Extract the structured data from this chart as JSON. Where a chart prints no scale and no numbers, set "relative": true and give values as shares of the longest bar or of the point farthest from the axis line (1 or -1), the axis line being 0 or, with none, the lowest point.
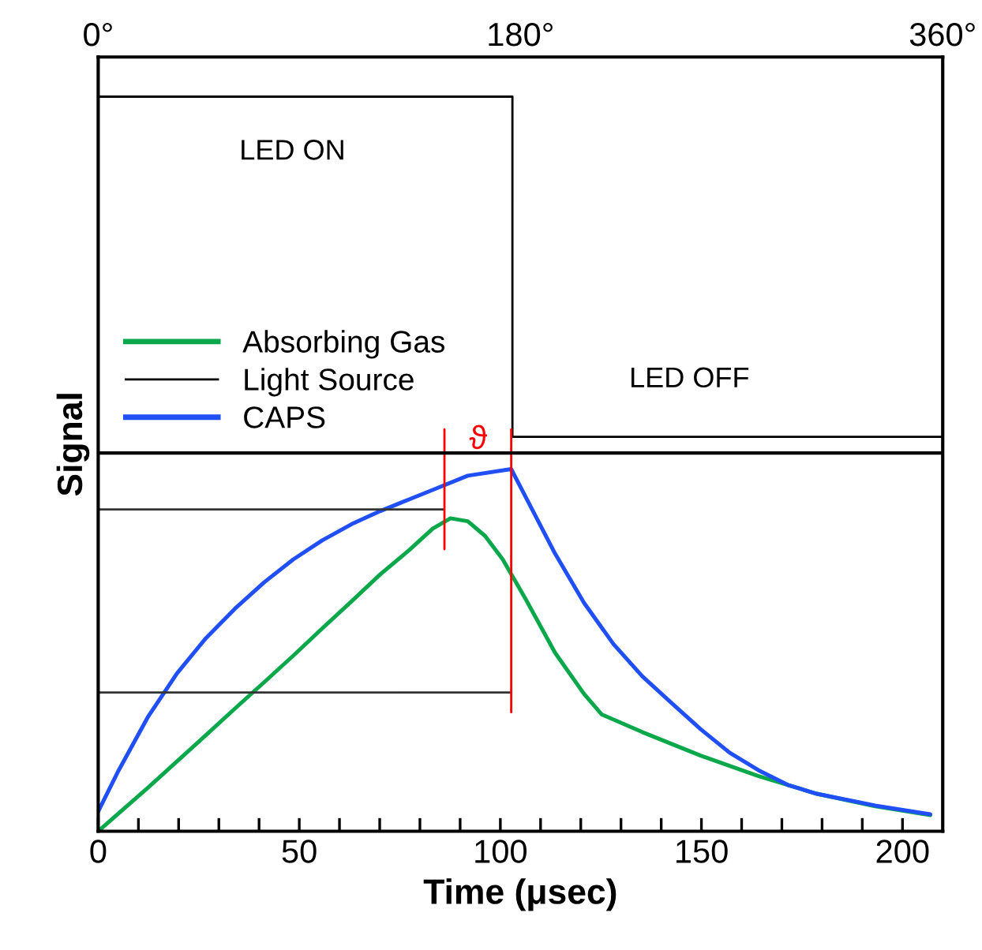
{
  "chart_data": {
    "type": "line",
    "relative": true,
    "xlabel": "Time (μsec)",
    "ylabel": "Signal",
    "xlim": [
      0,
      210
    ],
    "xticks": [
      0,
      {
        "value": 10,
        "label": null
      },
      {
        "value": 20,
        "label": null
      },
      {
        "value": 30,
        "label": null
      },
      {
        "value": 40,
        "label": null
      },
      50,
      {
        "value": 60,
        "label": null
      },
      {
        "value": 70,
        "label": null
      },
      {
        "value": 80,
        "label": null
      },
      {
        "value": 90,
        "label": null
      },
      100,
      {
        "value": 110,
        "label": null
      },
      {
        "value": 120,
        "label": null
      },
      {
        "value": 130,
        "label": null
      },
      {
        "value": 140,
        "label": null
      },
      150,
      {
        "value": 160,
        "label": null
      },
      {
        "value": 170,
        "label": null
      },
      {
        "value": 180,
        "label": null
      },
      {
        "value": 190,
        "label": null
      },
      200
    ],
    "x2lim": [
      0,
      360
    ],
    "x2ticks": [
      {
        "value": 0,
        "label": "0°"
      },
      {
        "value": 180,
        "label": "180°"
      },
      {
        "value": 360,
        "label": "360°"
      }
    ],
    "legend": "left",
    "series": [
      {
        "name": "Absorbing Gas",
        "color": "#0aa84a",
        "x": [
          0,
          12.3,
          26.8,
          34.0,
          41.3,
          48.5,
          55.7,
          63.0,
          70.2,
          77.4,
          83.2,
          87.6,
          91.9,
          96.2,
          100.6,
          106.4,
          113.6,
          120.8,
          125.2,
          135.3,
          149.8,
          164.2,
          178.7,
          193.2,
          206.9
        ],
        "values": [
          0.0,
          0.059,
          0.131,
          0.167,
          0.203,
          0.239,
          0.276,
          0.313,
          0.35,
          0.383,
          0.412,
          0.426,
          0.422,
          0.402,
          0.37,
          0.315,
          0.243,
          0.187,
          0.159,
          0.135,
          0.103,
          0.075,
          0.051,
          0.034,
          0.022
        ]
      },
      {
        "name": "Light Source",
        "color": "#000000",
        "x": [
          0,
          103,
          103,
          210
        ],
        "values": [
          1,
          1,
          0.537,
          0.537
        ]
      },
      {
        "name": "CAPS",
        "color": "#1f4ff5",
        "x": [
          0,
          5.1,
          12.3,
          19.6,
          26.8,
          34.0,
          41.3,
          48.5,
          55.7,
          63.0,
          70.2,
          77.4,
          84.7,
          91.9,
          102.7,
          106.4,
          113.6,
          120.8,
          128.1,
          135.3,
          142.5,
          149.8,
          157.0,
          164.2,
          171.5,
          178.7,
          193.2,
          206.9
        ],
        "values": [
          0.027,
          0.083,
          0.155,
          0.215,
          0.263,
          0.303,
          0.339,
          0.37,
          0.396,
          0.418,
          0.436,
          0.452,
          0.468,
          0.484,
          0.493,
          0.454,
          0.378,
          0.311,
          0.255,
          0.211,
          0.175,
          0.139,
          0.107,
          0.083,
          0.063,
          0.051,
          0.035,
          0.023
        ]
      },
      {
        "color": "#333333",
        "x": [
          0,
          86
        ],
        "values": [
          0.438,
          0.438
        ]
      },
      {
        "color": "#333333",
        "x": [
          0,
          102.7
        ],
        "values": [
          0.189,
          0.189
        ]
      },
      {
        "color": "#ff0000",
        "x": [
          86.1,
          86.1
        ],
        "values": [
          0.547,
          0.384
        ]
      },
      {
        "color": "#ff0000",
        "x": [
          102.7,
          102.7
        ],
        "values": [
          0.547,
          0.162
        ]
      }
    ],
    "ref_lines": [
      {
        "axis": "y",
        "value": 0.515,
        "color": "#000000"
      }
    ],
    "annotations": [
      "LED ON",
      "LED OFF",
      "ϑ"
    ]
  }
}
